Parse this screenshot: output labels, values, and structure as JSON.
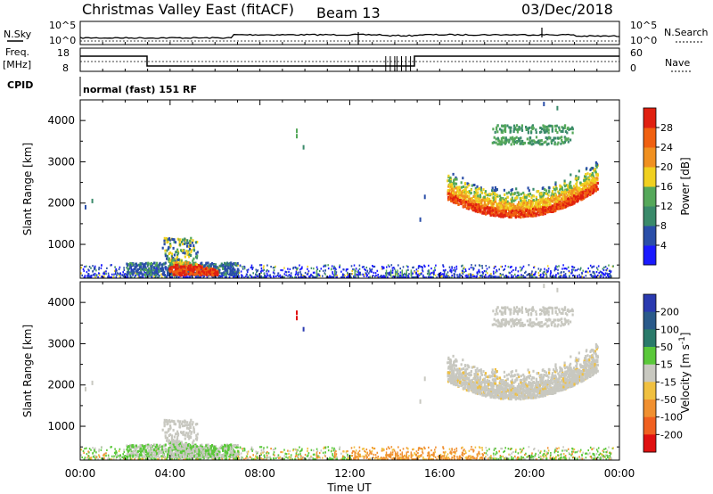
{
  "header": {
    "title": "Christmas Valley East (fitACF)",
    "beam": "Beam 13",
    "date": "03/Dec/2018"
  },
  "status_panel": {
    "nsky_label": "N.Sky",
    "nsearch_label": "N.Search",
    "noise_ticks": [
      "10^5",
      "10^0"
    ],
    "freq_label_1": "Freq.",
    "freq_label_2": "[MHz]",
    "freq_ticks": [
      "18",
      "8"
    ],
    "nave_label": "Nave",
    "nave_ticks": [
      "60",
      "0"
    ],
    "cpid_label": "CPID",
    "cpid_text": "normal (fast) 151 RF"
  },
  "colors": {
    "power": [
      "#1a1aff",
      "#2a4ea8",
      "#3a8a6a",
      "#55a85a",
      "#f0d020",
      "#f09020",
      "#f06010",
      "#e02010"
    ],
    "velocity": [
      "#2a3ab0",
      "#2a5a8a",
      "#2a7a6a",
      "#5ac83a",
      "#c8c8c0",
      "#f0c040",
      "#f09030",
      "#f06020",
      "#e01010"
    ]
  },
  "chart_data": [
    {
      "type": "heatmap",
      "ylabel": "Slant Range [km]",
      "ytick_labels": [
        "1000",
        "2000",
        "3000",
        "4000"
      ],
      "yrange": [
        180,
        4500
      ],
      "xrange_hours": [
        0,
        24
      ],
      "colorbar_label": "Power [dB]",
      "colorbar_ticks": [
        "4",
        "8",
        "12",
        "16",
        "20",
        "24",
        "28"
      ],
      "colorbar_range": [
        0,
        32
      ]
    },
    {
      "type": "heatmap",
      "ylabel": "Slant Range [km]",
      "xlabel": "Time UT",
      "xtick_labels": [
        "00:00",
        "04:00",
        "08:00",
        "12:00",
        "16:00",
        "20:00",
        "00:00"
      ],
      "ytick_labels": [
        "1000",
        "2000",
        "3000",
        "4000"
      ],
      "yrange": [
        180,
        4500
      ],
      "xrange_hours": [
        0,
        24
      ],
      "colorbar_label": "Velocity [m s^-1]",
      "colorbar_ticks": [
        "200",
        "100",
        "50",
        "15",
        "-15",
        "-50",
        "-100",
        "-200"
      ]
    }
  ]
}
